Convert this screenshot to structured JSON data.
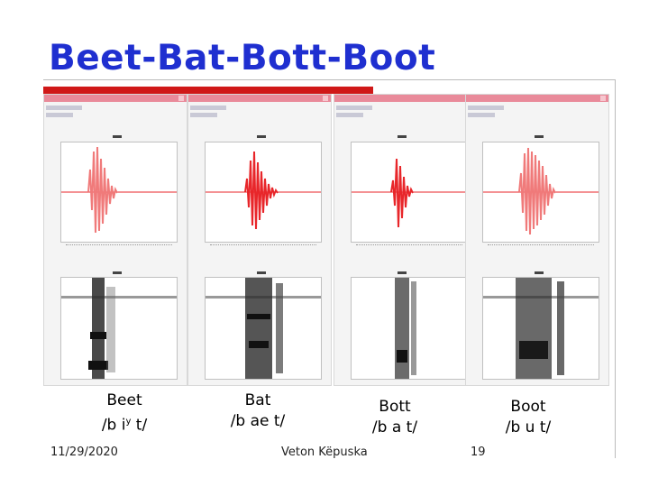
{
  "slide": {
    "title": "Beet-Bat-Bott-Boot",
    "footer": {
      "date": "11/29/2020",
      "author": "Veton Këpuska",
      "page": "19"
    }
  },
  "panels": [
    {
      "word": "Beet",
      "phonetic_pre": "/b i",
      "phonetic_sup": "y",
      "phonetic_post": " t/"
    },
    {
      "word": "Bat",
      "phonetic": "/b ae t/"
    },
    {
      "word": "Bott",
      "phonetic": "/b a t/"
    },
    {
      "word": "Boot",
      "phonetic": "/b u t/"
    }
  ],
  "colors": {
    "title": "#1f2fd0",
    "rule": "#d01818",
    "waveform": "#e8262a",
    "toolbar": "#e98a9a"
  }
}
